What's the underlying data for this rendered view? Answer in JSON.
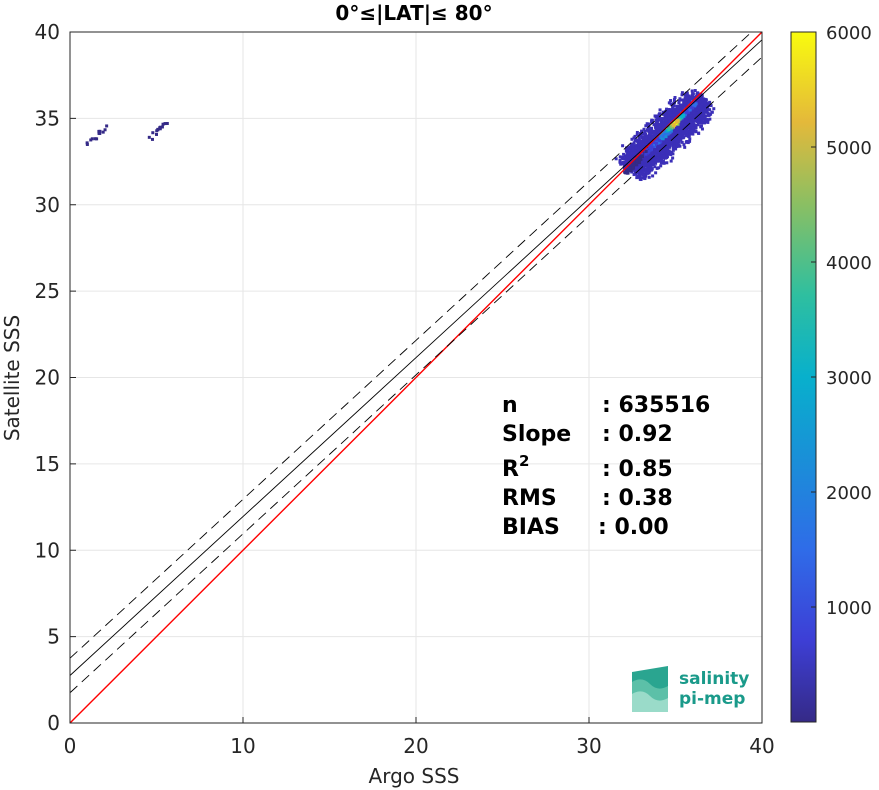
{
  "chart_data": {
    "type": "scatter",
    "title": "0°≤|LAT|≤ 80°",
    "xlabel": "Argo SSS",
    "ylabel": "Satellite SSS",
    "xlim": [
      0,
      40
    ],
    "ylim": [
      0,
      40
    ],
    "xticks": [
      0,
      10,
      20,
      30,
      40
    ],
    "yticks": [
      0,
      5,
      10,
      15,
      20,
      25,
      30,
      35,
      40
    ],
    "grid": true,
    "colorbar": {
      "range": [
        0,
        6000
      ],
      "ticks": [
        1000,
        2000,
        3000,
        4000,
        5000,
        6000
      ],
      "colormap": "parula"
    },
    "lines": [
      {
        "kind": "identity",
        "color": "#ff0000",
        "slope": 1.0,
        "intercept": 0.0,
        "style": "solid"
      },
      {
        "kind": "regression",
        "color": "#000000",
        "slope": 0.92,
        "intercept": 2.75,
        "style": "solid"
      },
      {
        "kind": "regression-upper",
        "color": "#000000",
        "slope": 0.92,
        "intercept": 3.75,
        "style": "dashed"
      },
      {
        "kind": "regression-lower",
        "color": "#000000",
        "slope": 0.92,
        "intercept": 1.75,
        "style": "dashed"
      }
    ],
    "density_clusters": [
      {
        "x": 34.8,
        "y": 34.7,
        "count": 6000
      },
      {
        "x": 34.2,
        "y": 34.1,
        "count": 2600
      },
      {
        "x": 33.6,
        "y": 33.5,
        "count": 1200
      },
      {
        "x": 35.6,
        "y": 35.5,
        "count": 1400
      },
      {
        "x": 33.0,
        "y": 33.0,
        "count": 500
      },
      {
        "x": 32.5,
        "y": 32.4,
        "count": 300
      },
      {
        "x": 1.5,
        "y": 34.1,
        "count": 150
      },
      {
        "x": 5.0,
        "y": 34.4,
        "count": 80
      }
    ],
    "stats": {
      "n_label": "n",
      "n_value": ": 635516",
      "slope_label": "Slope",
      "slope_value": ": 0.92",
      "r2_label": "R",
      "r2_sup": "2",
      "r2_value": ": 0.85",
      "rms_label": "RMS",
      "rms_value": ": 0.38",
      "bias_label": "BIAS",
      "bias_value": ": 0.00"
    }
  },
  "logo": {
    "line1": "salinity",
    "line2": "pi-mep",
    "color": "#1a9a8a"
  }
}
